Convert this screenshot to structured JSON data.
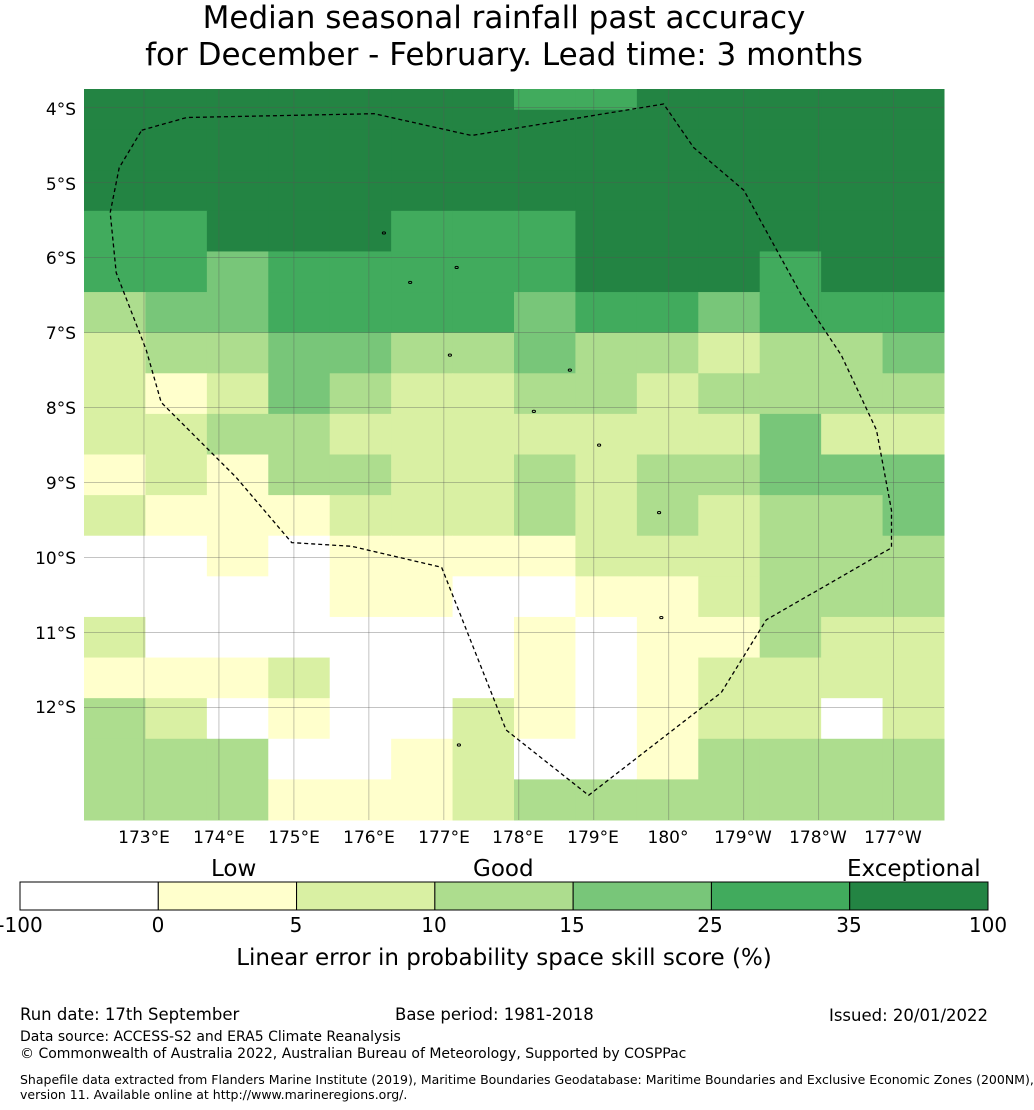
{
  "title": {
    "line1": "Median seasonal rainfall past accuracy",
    "line2": "for December - February. Lead time: 3 months"
  },
  "map": {
    "lat_ticks": [
      "4°S",
      "5°S",
      "6°S",
      "7°S",
      "8°S",
      "9°S",
      "10°S",
      "11°S",
      "12°S"
    ],
    "lon_ticks": [
      "173°E",
      "174°E",
      "175°E",
      "176°E",
      "177°E",
      "178°E",
      "179°E",
      "180°",
      "179°W",
      "178°W",
      "177°W"
    ],
    "lon_range": [
      172.2,
      183.67
    ],
    "lat_range": [
      -3.75,
      -13.5
    ],
    "cell_size_deg": 0.833,
    "skill_grid_classes": [
      [
        6,
        6,
        6,
        6,
        6,
        6,
        6,
        6,
        6,
        6,
        6,
        6,
        6,
        6
      ],
      [
        6,
        6,
        6,
        6,
        6,
        6,
        6,
        6,
        6,
        6,
        6,
        6,
        6,
        6
      ],
      [
        6,
        6,
        6,
        6,
        6,
        6,
        6,
        6,
        6,
        6,
        6,
        6,
        6,
        6
      ],
      [
        5,
        5,
        6,
        6,
        6,
        5,
        5,
        5,
        6,
        6,
        6,
        6,
        6,
        6
      ],
      [
        5,
        5,
        4,
        5,
        5,
        5,
        5,
        5,
        6,
        6,
        6,
        5,
        6,
        6
      ],
      [
        3,
        4,
        4,
        5,
        5,
        5,
        5,
        4,
        5,
        5,
        4,
        5,
        5,
        5
      ],
      [
        2,
        3,
        3,
        4,
        4,
        3,
        3,
        4,
        3,
        3,
        2,
        3,
        3,
        4
      ],
      [
        2,
        1,
        2,
        4,
        3,
        2,
        2,
        3,
        3,
        2,
        3,
        3,
        3,
        3
      ],
      [
        2,
        2,
        3,
        3,
        2,
        2,
        2,
        2,
        2,
        2,
        2,
        4,
        2,
        2
      ],
      [
        1,
        2,
        1,
        3,
        3,
        2,
        2,
        3,
        2,
        3,
        3,
        4,
        4,
        4
      ],
      [
        2,
        1,
        1,
        1,
        2,
        2,
        2,
        3,
        2,
        3,
        2,
        3,
        3,
        4
      ],
      [
        0,
        0,
        1,
        0,
        1,
        1,
        1,
        1,
        2,
        2,
        2,
        3,
        3,
        3
      ],
      [
        0,
        0,
        0,
        0,
        1,
        1,
        0,
        0,
        1,
        1,
        2,
        3,
        3,
        3
      ],
      [
        2,
        0,
        0,
        0,
        0,
        0,
        0,
        1,
        0,
        1,
        1,
        3,
        2,
        2
      ],
      [
        1,
        1,
        1,
        2,
        0,
        0,
        0,
        1,
        0,
        1,
        2,
        2,
        2,
        2
      ],
      [
        3,
        2,
        0,
        1,
        0,
        0,
        2,
        1,
        0,
        1,
        2,
        2,
        0,
        2
      ],
      [
        3,
        3,
        3,
        0,
        0,
        1,
        2,
        0,
        0,
        1,
        3,
        3,
        3,
        3
      ],
      [
        3,
        3,
        3,
        1,
        1,
        1,
        2,
        3,
        3,
        3,
        3,
        3,
        3,
        3
      ]
    ],
    "skill_grid_overrides": [
      {
        "row": 0,
        "col": 7,
        "class": 5
      },
      {
        "row": 0,
        "col": 8,
        "class": 5
      }
    ],
    "eez_boundary_lonlat": [
      [
        172.97,
        -4.3
      ],
      [
        173.57,
        -4.13
      ],
      [
        176.07,
        -4.08
      ],
      [
        177.37,
        -4.37
      ],
      [
        179.93,
        -3.95
      ],
      [
        180.33,
        -4.53
      ],
      [
        181.0,
        -5.1
      ],
      [
        181.77,
        -6.5
      ],
      [
        182.3,
        -7.3
      ],
      [
        182.77,
        -8.3
      ],
      [
        182.97,
        -9.37
      ],
      [
        182.97,
        -9.87
      ],
      [
        181.3,
        -10.83
      ],
      [
        180.7,
        -11.8
      ],
      [
        178.93,
        -13.17
      ],
      [
        177.83,
        -12.3
      ],
      [
        176.97,
        -10.13
      ],
      [
        175.77,
        -9.85
      ],
      [
        174.97,
        -9.8
      ],
      [
        174.23,
        -8.93
      ],
      [
        173.23,
        -7.93
      ],
      [
        173.03,
        -7.23
      ],
      [
        172.63,
        -6.2
      ],
      [
        172.55,
        -5.4
      ],
      [
        172.67,
        -4.8
      ],
      [
        172.97,
        -4.3
      ]
    ],
    "islands_lonlat": [
      [
        176.2,
        -5.67
      ],
      [
        176.55,
        -6.33
      ],
      [
        177.17,
        -6.13
      ],
      [
        177.08,
        -7.3
      ],
      [
        178.68,
        -7.5
      ],
      [
        178.2,
        -8.05
      ],
      [
        179.07,
        -8.5
      ],
      [
        179.87,
        -9.4
      ],
      [
        179.9,
        -10.8
      ],
      [
        177.2,
        -12.5
      ]
    ]
  },
  "colorbar": {
    "categories": [
      "Low",
      "Good",
      "Exceptional"
    ],
    "ticks": [
      "-100",
      "0",
      "5",
      "10",
      "15",
      "25",
      "35",
      "100"
    ],
    "bins": [
      {
        "from": -100,
        "to": 0,
        "color": "#ffffff"
      },
      {
        "from": 0,
        "to": 5,
        "color": "#ffffcc"
      },
      {
        "from": 5,
        "to": 10,
        "color": "#d9f0a3"
      },
      {
        "from": 10,
        "to": 15,
        "color": "#addd8e"
      },
      {
        "from": 15,
        "to": 25,
        "color": "#78c679"
      },
      {
        "from": 25,
        "to": 35,
        "color": "#41ab5d"
      },
      {
        "from": 35,
        "to": 100,
        "color": "#238443"
      }
    ],
    "label": "Linear error in probability space skill score (%)"
  },
  "footer": {
    "run_date": "Run date: 17th September",
    "base_period": "Base period: 1981-2018",
    "issued": "Issued: 20/01/2022",
    "data_source": "Data source: ACCESS-S2 and ERA5 Climate Reanalysis",
    "copyright": "© Commonwealth of Australia 2022, Australian Bureau of Meteorology, Supported by COSPPac",
    "shapefile_line1": "Shapefile data extracted from Flanders Marine Institute (2019), Maritime Boundaries Geodatabase: Maritime Boundaries and Exclusive Economic Zones (200NM),",
    "shapefile_line2": "version 11. Available online at http://www.marineregions.org/."
  }
}
